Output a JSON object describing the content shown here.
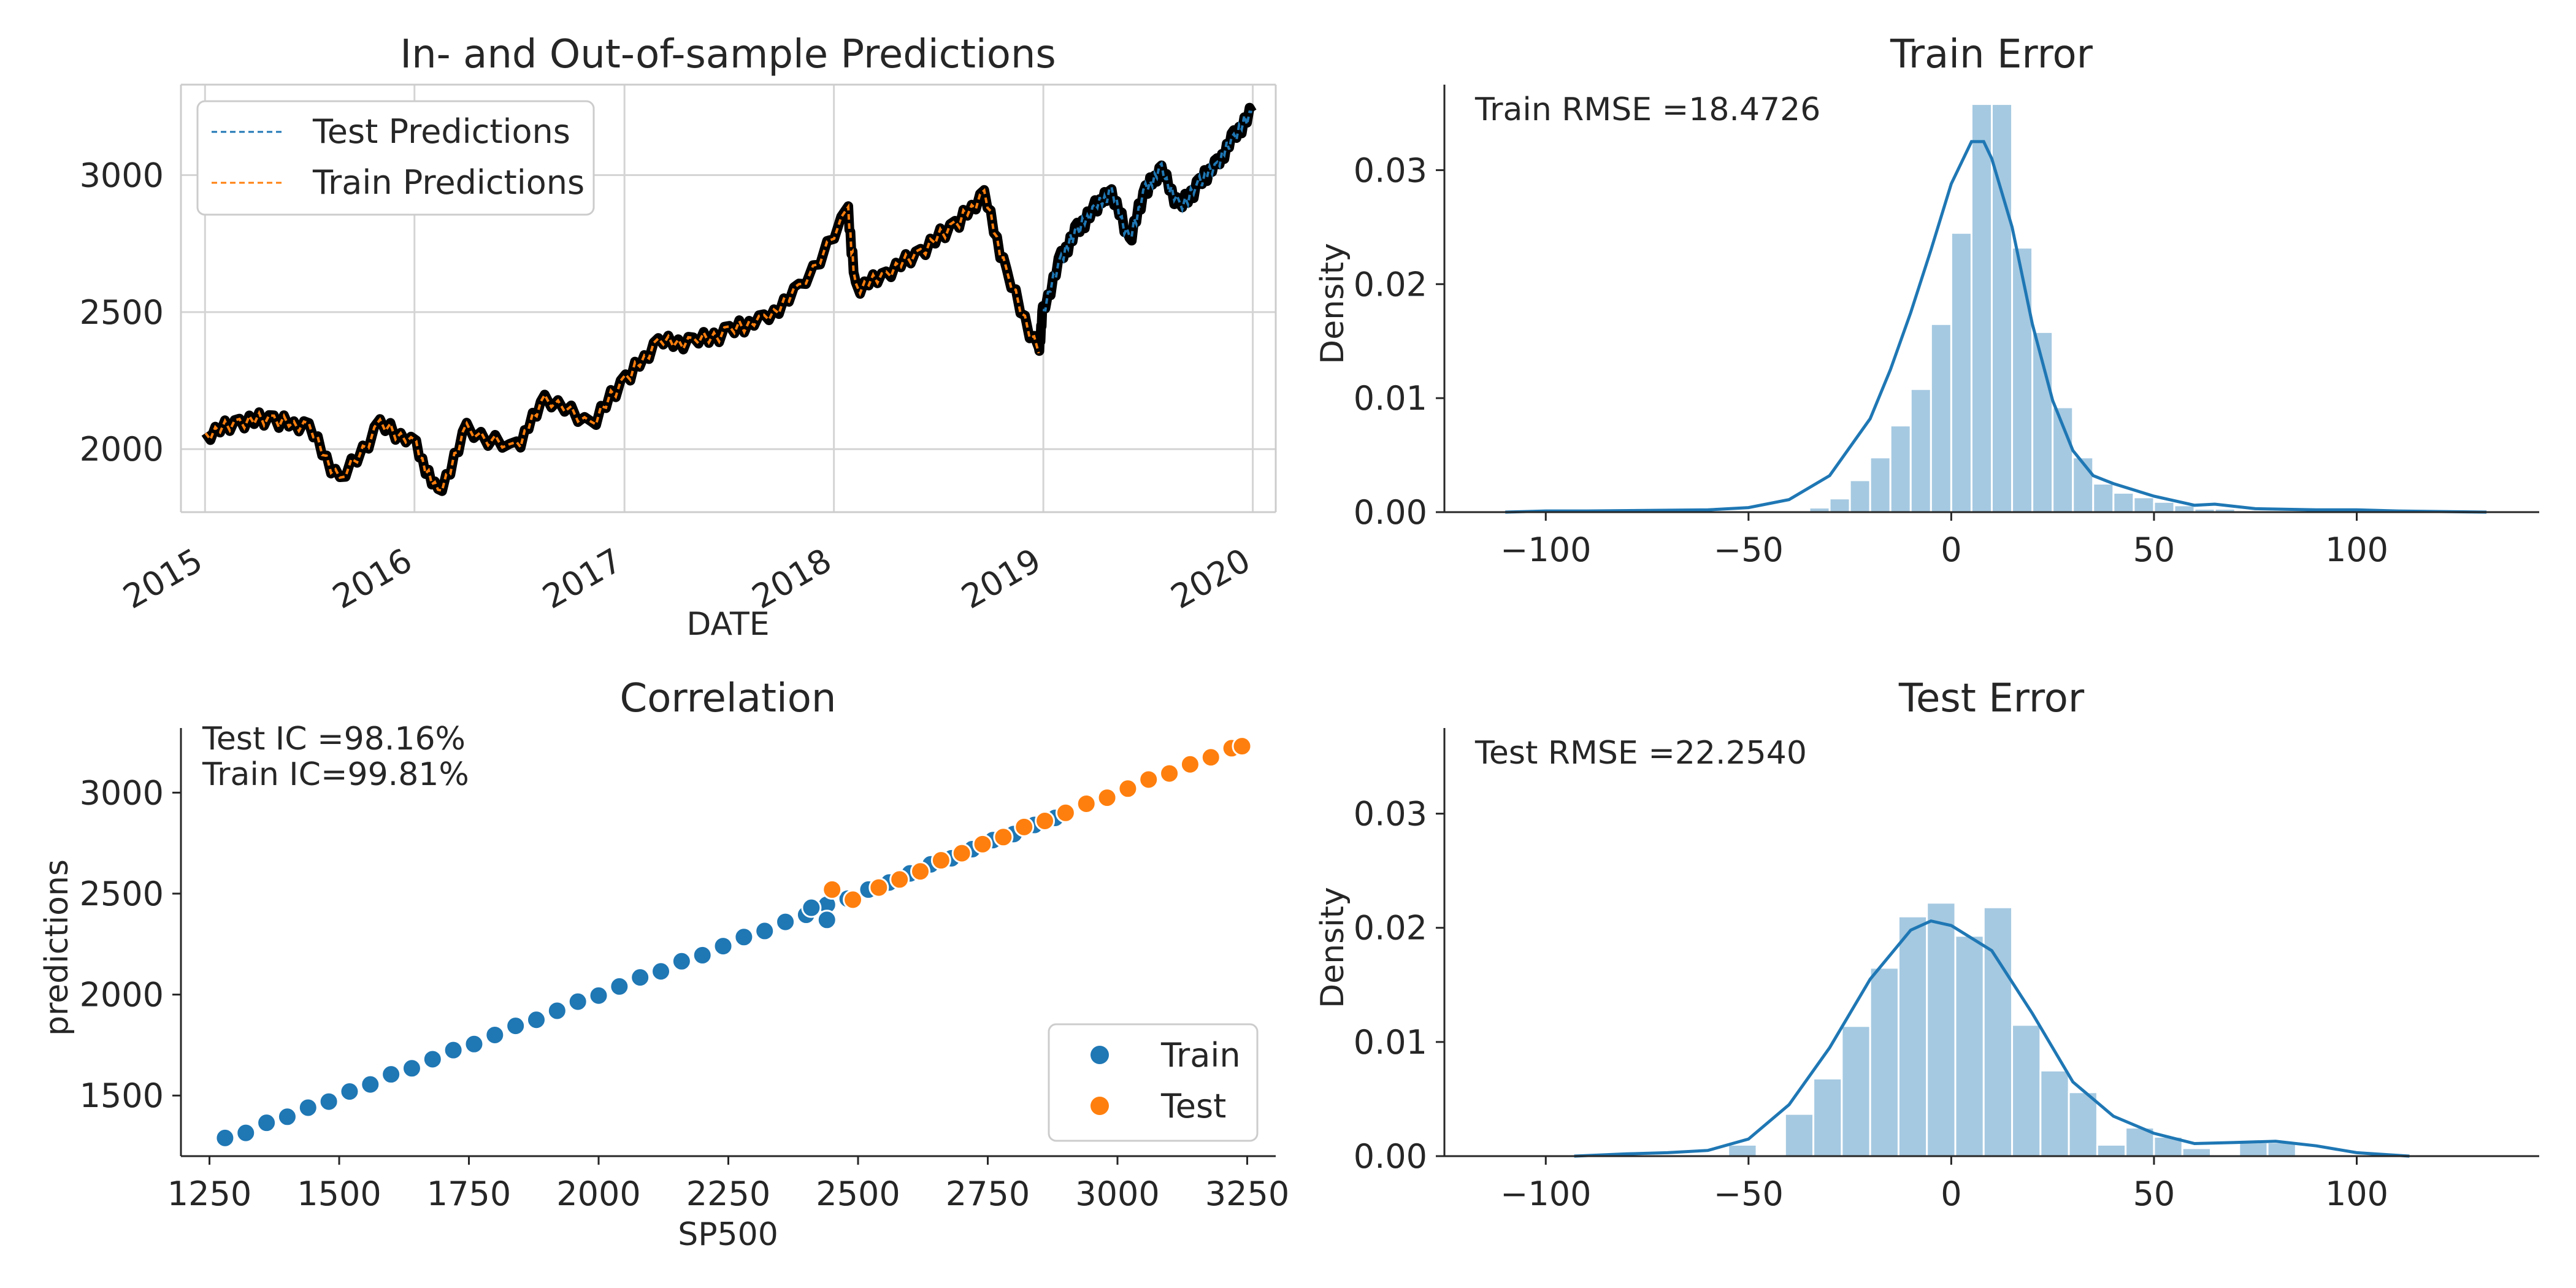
{
  "chart_data": [
    {
      "type": "line",
      "title": "In- and Out-of-sample Predictions",
      "xlabel": "DATE",
      "ylabel": "",
      "xlim": [
        "2014-11-20",
        "2020-02-10"
      ],
      "ylim": [
        1770,
        3330
      ],
      "grid": true,
      "legend_position": "top-left",
      "x_tick_labels": [
        "2015",
        "2016",
        "2017",
        "2018",
        "2019",
        "2020"
      ],
      "y_tick_labels": [
        "2000",
        "2500",
        "3000"
      ],
      "series": [
        {
          "name": "Test Predictions",
          "color": "#1f77b4",
          "x": [
            "2018-12-31",
            "2019-02-01",
            "2019-03-01",
            "2019-04-01",
            "2019-04-30",
            "2019-05-31",
            "2019-06-28",
            "2019-07-26",
            "2019-08-26",
            "2019-09-30",
            "2019-10-31",
            "2019-11-29",
            "2019-12-31"
          ],
          "values": [
            2500,
            2700,
            2800,
            2880,
            2940,
            2760,
            2950,
            3020,
            2880,
            2970,
            3040,
            3140,
            3230
          ]
        },
        {
          "name": "Train Predictions",
          "color": "#ff7f0e",
          "x": [
            "2015-01-02",
            "2015-03-02",
            "2015-05-01",
            "2015-07-01",
            "2015-08-24",
            "2015-11-02",
            "2016-01-04",
            "2016-02-11",
            "2016-04-01",
            "2016-06-27",
            "2016-08-15",
            "2016-11-04",
            "2017-01-03",
            "2017-03-01",
            "2017-05-01",
            "2017-07-03",
            "2017-09-01",
            "2017-11-01",
            "2018-01-26",
            "2018-02-08",
            "2018-04-02",
            "2018-06-01",
            "2018-07-31",
            "2018-09-20",
            "2018-10-29",
            "2018-12-24"
          ],
          "values": [
            2050,
            2100,
            2110,
            2080,
            1880,
            2090,
            2010,
            1830,
            2070,
            2000,
            2190,
            2090,
            2260,
            2390,
            2390,
            2430,
            2470,
            2580,
            2860,
            2580,
            2640,
            2720,
            2820,
            2930,
            2640,
            2350
          ]
        }
      ]
    },
    {
      "type": "histogram",
      "title": "Train Error",
      "annotation": "Train RMSE =18.4726",
      "xlabel": "",
      "ylabel": "Density",
      "xlim": [
        -125,
        145
      ],
      "ylim": [
        0,
        0.0375
      ],
      "x_tick_labels": [
        "−100",
        "−50",
        "0",
        "50",
        "100"
      ],
      "y_tick_labels": [
        "0.00",
        "0.01",
        "0.02",
        "0.03"
      ],
      "color": "#1f77b4",
      "bin_width": 5,
      "bins": [
        [
          -40,
          0.0001
        ],
        [
          -35,
          0.0004
        ],
        [
          -30,
          0.0012
        ],
        [
          -25,
          0.0028
        ],
        [
          -20,
          0.0048
        ],
        [
          -15,
          0.0076
        ],
        [
          -10,
          0.0108
        ],
        [
          -5,
          0.0165
        ],
        [
          0,
          0.0245
        ],
        [
          5,
          0.0358
        ],
        [
          10,
          0.0358
        ],
        [
          15,
          0.0232
        ],
        [
          20,
          0.0158
        ],
        [
          25,
          0.0092
        ],
        [
          30,
          0.0048
        ],
        [
          35,
          0.0025
        ],
        [
          40,
          0.0017
        ],
        [
          45,
          0.0013
        ],
        [
          50,
          0.0009
        ],
        [
          55,
          0.0006
        ],
        [
          60,
          0.0003
        ],
        [
          65,
          0.0003
        ]
      ],
      "kde": [
        [
          -110,
          0
        ],
        [
          -100,
          0.0001
        ],
        [
          -90,
          0.0001
        ],
        [
          -60,
          0.0002
        ],
        [
          -50,
          0.0004
        ],
        [
          -40,
          0.0011
        ],
        [
          -30,
          0.0032
        ],
        [
          -20,
          0.0082
        ],
        [
          -15,
          0.0125
        ],
        [
          -10,
          0.0175
        ],
        [
          -5,
          0.023
        ],
        [
          0,
          0.0288
        ],
        [
          5,
          0.0325
        ],
        [
          8,
          0.0325
        ],
        [
          10,
          0.031
        ],
        [
          15,
          0.025
        ],
        [
          20,
          0.0165
        ],
        [
          25,
          0.0098
        ],
        [
          30,
          0.0054
        ],
        [
          35,
          0.0032
        ],
        [
          40,
          0.0025
        ],
        [
          50,
          0.0014
        ],
        [
          60,
          0.0006
        ],
        [
          65,
          0.0007
        ],
        [
          75,
          0.0003
        ],
        [
          90,
          0.0002
        ],
        [
          100,
          0.0002
        ],
        [
          110,
          0.0001
        ],
        [
          132,
          0
        ]
      ]
    },
    {
      "type": "scatter",
      "title": "Correlation",
      "annotations": [
        "Test IC =98.16%",
        "Train IC=99.81%"
      ],
      "xlabel": "SP500",
      "ylabel": "predictions",
      "xlim": [
        1195,
        3305
      ],
      "ylim": [
        1200,
        3320
      ],
      "x_tick_labels": [
        "1250",
        "1500",
        "1750",
        "2000",
        "2250",
        "2500",
        "2750",
        "3000",
        "3250"
      ],
      "y_tick_labels": [
        "1500",
        "2000",
        "2500",
        "3000"
      ],
      "legend_position": "bottom-right",
      "series": [
        {
          "name": "Train",
          "color": "#1f77b4",
          "x": [
            1280,
            1320,
            1360,
            1400,
            1440,
            1480,
            1520,
            1560,
            1600,
            1640,
            1680,
            1720,
            1760,
            1800,
            1840,
            1880,
            1920,
            1960,
            2000,
            2040,
            2080,
            2120,
            2160,
            2200,
            2240,
            2280,
            2320,
            2360,
            2400,
            2440,
            2480,
            2520,
            2560,
            2600,
            2640,
            2680,
            2720,
            2760,
            2800,
            2840,
            2880,
            2410,
            2440
          ],
          "values": [
            1290,
            1315,
            1365,
            1395,
            1440,
            1470,
            1520,
            1555,
            1605,
            1635,
            1680,
            1725,
            1755,
            1800,
            1845,
            1875,
            1920,
            1965,
            1995,
            2040,
            2085,
            2115,
            2165,
            2195,
            2240,
            2285,
            2315,
            2360,
            2395,
            2445,
            2475,
            2520,
            2555,
            2600,
            2645,
            2675,
            2720,
            2765,
            2795,
            2840,
            2875,
            2430,
            2370
          ]
        },
        {
          "name": "Test",
          "color": "#ff7f0e",
          "x": [
            2450,
            2490,
            2540,
            2580,
            2620,
            2660,
            2700,
            2740,
            2780,
            2820,
            2860,
            2900,
            2940,
            2980,
            3020,
            3060,
            3100,
            3140,
            3180,
            3220,
            3240
          ],
          "values": [
            2520,
            2470,
            2530,
            2570,
            2610,
            2665,
            2700,
            2745,
            2780,
            2830,
            2860,
            2900,
            2945,
            2975,
            3020,
            3065,
            3095,
            3140,
            3175,
            3220,
            3230
          ]
        }
      ]
    },
    {
      "type": "histogram",
      "title": "Test Error",
      "annotation": "Test RMSE =22.2540",
      "xlabel": "",
      "ylabel": "Density",
      "xlim": [
        -125,
        145
      ],
      "ylim": [
        0,
        0.0375
      ],
      "x_tick_labels": [
        "−100",
        "−50",
        "0",
        "50",
        "100"
      ],
      "y_tick_labels": [
        "0.00",
        "0.01",
        "0.02",
        "0.03"
      ],
      "color": "#1f77b4",
      "bin_width": 7,
      "bins": [
        [
          -55,
          0.001
        ],
        [
          -41,
          0.0037
        ],
        [
          -34,
          0.0068
        ],
        [
          -27,
          0.0114
        ],
        [
          -20,
          0.0165
        ],
        [
          -13,
          0.021
        ],
        [
          -6,
          0.0222
        ],
        [
          1,
          0.0193
        ],
        [
          8,
          0.0218
        ],
        [
          15,
          0.0115
        ],
        [
          22,
          0.0075
        ],
        [
          29,
          0.0056
        ],
        [
          36,
          0.001
        ],
        [
          43,
          0.0025
        ],
        [
          50,
          0.0017
        ],
        [
          57,
          0.0007
        ],
        [
          71,
          0.0012
        ],
        [
          78,
          0.0012
        ]
      ],
      "kde": [
        [
          -93,
          0
        ],
        [
          -80,
          0.0002
        ],
        [
          -70,
          0.0003
        ],
        [
          -60,
          0.0005
        ],
        [
          -50,
          0.0015
        ],
        [
          -40,
          0.0045
        ],
        [
          -30,
          0.0095
        ],
        [
          -20,
          0.0155
        ],
        [
          -10,
          0.0198
        ],
        [
          -5,
          0.0206
        ],
        [
          0,
          0.0202
        ],
        [
          10,
          0.018
        ],
        [
          20,
          0.0125
        ],
        [
          30,
          0.0065
        ],
        [
          40,
          0.0035
        ],
        [
          50,
          0.002
        ],
        [
          60,
          0.0011
        ],
        [
          70,
          0.0012
        ],
        [
          80,
          0.0013
        ],
        [
          90,
          0.0009
        ],
        [
          100,
          0.0003
        ],
        [
          113,
          0
        ]
      ]
    }
  ]
}
